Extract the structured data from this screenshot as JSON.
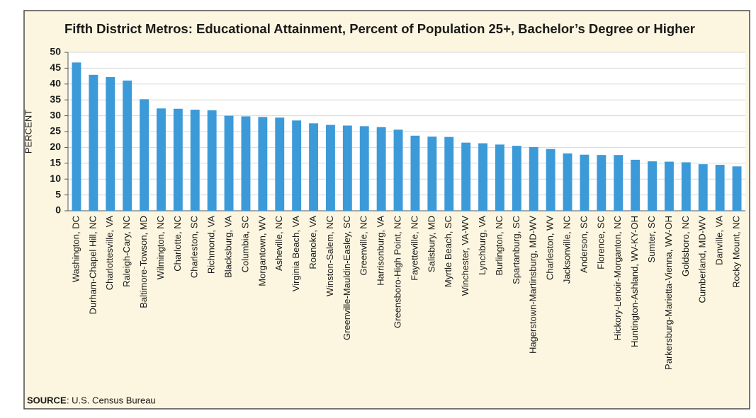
{
  "chart_data": {
    "type": "bar",
    "title": "Fifth District Metros: Educational Attainment, Percent of Population 25+, Bachelor’s Degree or Higher",
    "y_label": "PERCENT",
    "source_label": "SOURCE",
    "source_text": ": U.S. Census Bureau",
    "categories": [
      "Washington, DC",
      "Durham-Chapel Hill, NC",
      "Charlottesville, VA",
      "Raleigh-Cary, NC",
      "Baltimore-Towson, MD",
      "Wilmington, NC",
      "Charlotte, NC",
      "Charleston, SC",
      "Richmond, VA",
      "Blacksburg, VA",
      "Columbia, SC",
      "Morgantown, WV",
      "Asheville, NC",
      "Virginia Beach, VA",
      "Roanoke, VA",
      "Winston-Salem, NC",
      "Greenville-Mauldin-Easley, SC",
      "Greenville, NC",
      "Harrisonburg, VA",
      "Greensboro-High Point, NC",
      "Fayetteville, NC",
      "Salisbury, MD",
      "Myrtle Beach, SC",
      "Winchester, VA-WV",
      "Lynchburg, VA",
      "Burlington, NC",
      "Spartanburg, SC",
      "Hagerstown-Martinsburg, MD-WV",
      "Charleston, WV",
      "Jacksonville, NC",
      "Anderson, SC",
      "Florence, SC",
      "Hickory-Lenoir-Morganton, NC",
      "Huntington-Ashland, WV-KY-OH",
      "Sumter, SC",
      "Parkersburg-Marietta-Vienna, WV-OH",
      "Goldsboro, NC",
      "Cumberland, MD-WV",
      "Danville, VA",
      "Rocky Mount, NC"
    ],
    "values": [
      46.8,
      42.9,
      42.2,
      41.1,
      35.2,
      32.3,
      32.2,
      31.9,
      31.7,
      30.0,
      29.8,
      29.6,
      29.4,
      28.5,
      27.6,
      27.1,
      26.9,
      26.7,
      26.4,
      25.6,
      23.7,
      23.4,
      23.3,
      21.5,
      21.3,
      20.9,
      20.5,
      20.1,
      19.5,
      18.1,
      17.7,
      17.6,
      17.6,
      16.1,
      15.6,
      15.5,
      15.3,
      14.7,
      14.5,
      14.0
    ],
    "color": "#3d9ad8",
    "ylim": [
      0,
      50
    ],
    "yticks": [
      0,
      5,
      10,
      15,
      20,
      25,
      30,
      35,
      40,
      45,
      50
    ],
    "grid": true
  }
}
